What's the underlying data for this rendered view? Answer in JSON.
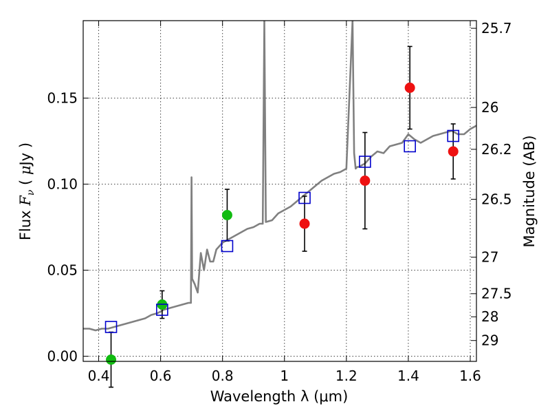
{
  "chart_data": {
    "type": "scatter",
    "xlabel": "Wavelength  λ (μm)",
    "ylabel": "Flux  F_ν  ( μJy )",
    "y2label": "Magnitude (AB)",
    "xlim": [
      0.35,
      1.62
    ],
    "ylim": [
      -0.003,
      0.195
    ],
    "xticks": [
      0.4,
      0.6,
      0.8,
      1.0,
      1.2,
      1.4,
      1.6
    ],
    "xtick_labels": [
      "0.4",
      "0.6",
      "0.8",
      "1",
      "1.2",
      "1.4",
      "1.6"
    ],
    "yticks": [
      0.0,
      0.05,
      0.1,
      0.15
    ],
    "ytick_labels": [
      "0.00",
      "0.05",
      "0.10",
      "0.15"
    ],
    "magnitude_ticks": [
      25.7,
      26,
      26.2,
      26.5,
      27,
      27.5,
      28,
      29
    ],
    "magnitude_tick_labels": [
      "25.7",
      "26",
      "26.2",
      "26.5",
      "27",
      "27.5",
      "28",
      "29"
    ],
    "grid": true,
    "colors": {
      "spectrum": "#808080",
      "model": "#0000cc",
      "red_points": "#ee1111",
      "green_points": "#11bb11",
      "errorbar": "#000000"
    },
    "series": [
      {
        "name": "model spectrum",
        "kind": "line",
        "x": [
          0.35,
          0.37,
          0.39,
          0.41,
          0.43,
          0.45,
          0.47,
          0.49,
          0.51,
          0.53,
          0.55,
          0.57,
          0.59,
          0.61,
          0.63,
          0.65,
          0.67,
          0.69,
          0.698,
          0.7,
          0.702,
          0.71,
          0.72,
          0.73,
          0.74,
          0.75,
          0.76,
          0.77,
          0.78,
          0.79,
          0.8,
          0.82,
          0.84,
          0.86,
          0.88,
          0.9,
          0.92,
          0.93,
          0.935,
          0.94,
          0.96,
          0.98,
          1.0,
          1.02,
          1.04,
          1.06,
          1.08,
          1.1,
          1.12,
          1.14,
          1.16,
          1.18,
          1.2,
          1.22,
          1.225,
          1.23,
          1.235,
          1.24,
          1.26,
          1.28,
          1.3,
          1.32,
          1.34,
          1.36,
          1.38,
          1.4,
          1.42,
          1.44,
          1.46,
          1.48,
          1.5,
          1.52,
          1.54,
          1.56,
          1.58,
          1.6,
          1.62
        ],
        "y": [
          0.016,
          0.016,
          0.015,
          0.016,
          0.016,
          0.017,
          0.018,
          0.019,
          0.02,
          0.021,
          0.022,
          0.024,
          0.025,
          0.027,
          0.028,
          0.029,
          0.03,
          0.031,
          0.031,
          0.104,
          0.045,
          0.042,
          0.037,
          0.06,
          0.05,
          0.062,
          0.055,
          0.055,
          0.062,
          0.064,
          0.066,
          0.068,
          0.07,
          0.072,
          0.074,
          0.075,
          0.077,
          0.077,
          0.195,
          0.078,
          0.079,
          0.083,
          0.085,
          0.087,
          0.09,
          0.093,
          0.096,
          0.099,
          0.102,
          0.104,
          0.106,
          0.107,
          0.109,
          0.195,
          0.118,
          0.109,
          0.11,
          0.11,
          0.112,
          0.116,
          0.119,
          0.118,
          0.122,
          0.123,
          0.124,
          0.129,
          0.126,
          0.124,
          0.126,
          0.128,
          0.129,
          0.13,
          0.131,
          0.129,
          0.129,
          0.132,
          0.134
        ]
      },
      {
        "name": "model photometry",
        "kind": "open-square",
        "x": [
          0.44,
          0.605,
          0.815,
          1.065,
          1.26,
          1.405,
          1.545
        ],
        "y": [
          0.017,
          0.027,
          0.064,
          0.092,
          0.113,
          0.122,
          0.128
        ]
      },
      {
        "name": "observed photometry",
        "kind": "filled-circle",
        "x": [
          1.065,
          1.26,
          1.405,
          1.545
        ],
        "y": [
          0.077,
          0.102,
          0.156,
          0.119
        ],
        "yerr": [
          0.016,
          0.028,
          0.024,
          0.016
        ]
      },
      {
        "name": "observed photometry (optical)",
        "kind": "filled-circle",
        "x": [
          0.44,
          0.605,
          0.815
        ],
        "y": [
          -0.002,
          0.03,
          0.082
        ],
        "yerr": [
          0.016,
          0.008,
          0.015
        ]
      }
    ]
  }
}
